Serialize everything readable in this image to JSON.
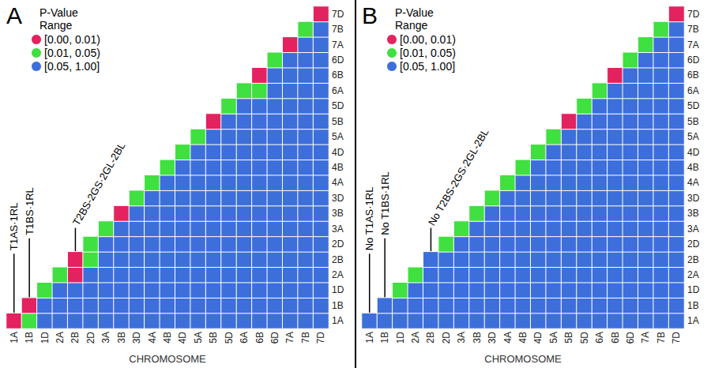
{
  "chart_data": [
    {
      "type": "heatmap",
      "panel_label": "A",
      "x_label": "CHROMOSOME",
      "categories": [
        "1A",
        "1B",
        "1D",
        "2A",
        "2B",
        "2D",
        "3A",
        "3B",
        "3D",
        "4A",
        "4B",
        "4D",
        "5A",
        "5B",
        "5D",
        "6A",
        "6B",
        "6D",
        "7A",
        "7B",
        "7D"
      ],
      "legend_title": "P-Value\nRange",
      "ranges": [
        {
          "min": 0.0,
          "max": 0.01,
          "label": "[0.00, 0.01)",
          "color": "#e3225f"
        },
        {
          "min": 0.01,
          "max": 0.05,
          "label": "[0.01, 0.05)",
          "color": "#3fe03f"
        },
        {
          "min": 0.05,
          "max": 1.0,
          "label": "[0.05, 1.00]",
          "color": "#3d6fdb"
        }
      ],
      "annotations": [
        {
          "text": "T1AS·1RL",
          "chromosome": "1A"
        },
        {
          "text": "T1BS·1RL",
          "chromosome": "1B"
        },
        {
          "text": "T2BS-2GS·2GL-2BL",
          "chromosome": "2B"
        }
      ],
      "p_values": [
        [
          0.005,
          0.03,
          0.5,
          0.5,
          0.5,
          0.5,
          0.5,
          0.5,
          0.5,
          0.5,
          0.5,
          0.5,
          0.5,
          0.5,
          0.5,
          0.5,
          0.5,
          0.5,
          0.5,
          0.5,
          0.5
        ],
        [
          0.005,
          0.5,
          0.5,
          0.5,
          0.5,
          0.5,
          0.5,
          0.5,
          0.5,
          0.5,
          0.5,
          0.5,
          0.5,
          0.5,
          0.5,
          0.5,
          0.5,
          0.5,
          0.5,
          0.5
        ],
        [
          0.03,
          0.5,
          0.5,
          0.5,
          0.5,
          0.5,
          0.5,
          0.5,
          0.5,
          0.5,
          0.5,
          0.5,
          0.5,
          0.5,
          0.5,
          0.5,
          0.5,
          0.5,
          0.5
        ],
        [
          0.03,
          0.005,
          0.5,
          0.5,
          0.5,
          0.5,
          0.5,
          0.5,
          0.5,
          0.5,
          0.5,
          0.5,
          0.5,
          0.5,
          0.5,
          0.5,
          0.5,
          0.5
        ],
        [
          0.005,
          0.03,
          0.5,
          0.5,
          0.5,
          0.5,
          0.5,
          0.5,
          0.5,
          0.5,
          0.5,
          0.5,
          0.5,
          0.5,
          0.5,
          0.5,
          0.5
        ],
        [
          0.03,
          0.5,
          0.5,
          0.5,
          0.5,
          0.5,
          0.5,
          0.5,
          0.5,
          0.5,
          0.5,
          0.5,
          0.5,
          0.5,
          0.5,
          0.5
        ],
        [
          0.03,
          0.5,
          0.5,
          0.5,
          0.5,
          0.5,
          0.5,
          0.5,
          0.5,
          0.5,
          0.5,
          0.5,
          0.5,
          0.5,
          0.5
        ],
        [
          0.005,
          0.5,
          0.5,
          0.5,
          0.5,
          0.5,
          0.5,
          0.5,
          0.5,
          0.5,
          0.5,
          0.5,
          0.5,
          0.5
        ],
        [
          0.03,
          0.5,
          0.5,
          0.5,
          0.5,
          0.5,
          0.5,
          0.5,
          0.5,
          0.5,
          0.5,
          0.5,
          0.5
        ],
        [
          0.03,
          0.5,
          0.5,
          0.5,
          0.5,
          0.5,
          0.5,
          0.5,
          0.5,
          0.5,
          0.5,
          0.5
        ],
        [
          0.03,
          0.5,
          0.5,
          0.5,
          0.5,
          0.5,
          0.5,
          0.5,
          0.5,
          0.5,
          0.5
        ],
        [
          0.03,
          0.5,
          0.5,
          0.5,
          0.5,
          0.5,
          0.5,
          0.5,
          0.5,
          0.5
        ],
        [
          0.03,
          0.5,
          0.5,
          0.5,
          0.5,
          0.5,
          0.5,
          0.5,
          0.5
        ],
        [
          0.005,
          0.5,
          0.5,
          0.5,
          0.5,
          0.5,
          0.5,
          0.5
        ],
        [
          0.03,
          0.5,
          0.5,
          0.5,
          0.5,
          0.5,
          0.5
        ],
        [
          0.03,
          0.03,
          0.5,
          0.5,
          0.5,
          0.5
        ],
        [
          0.005,
          0.5,
          0.5,
          0.5,
          0.5
        ],
        [
          0.03,
          0.5,
          0.5,
          0.5
        ],
        [
          0.005,
          0.5,
          0.5
        ],
        [
          0.03,
          0.5
        ],
        [
          0.005
        ]
      ]
    },
    {
      "type": "heatmap",
      "panel_label": "B",
      "x_label": "CHROMOSOME",
      "categories": [
        "1A",
        "1B",
        "1D",
        "2A",
        "2B",
        "2D",
        "3A",
        "3B",
        "3D",
        "4A",
        "4B",
        "4D",
        "5A",
        "5B",
        "5D",
        "6A",
        "6B",
        "6D",
        "7A",
        "7B",
        "7D"
      ],
      "legend_title": "P-Value\nRange",
      "ranges": [
        {
          "min": 0.0,
          "max": 0.01,
          "label": "[0.00, 0.01)",
          "color": "#e3225f"
        },
        {
          "min": 0.01,
          "max": 0.05,
          "label": "[0.01, 0.05)",
          "color": "#3fe03f"
        },
        {
          "min": 0.05,
          "max": 1.0,
          "label": "[0.05, 1.00]",
          "color": "#3d6fdb"
        }
      ],
      "annotations": [
        {
          "text": "No T1AS·1RL",
          "chromosome": "1A"
        },
        {
          "text": "No T1BS·1RL",
          "chromosome": "1B"
        },
        {
          "text": "No T2BS-2GS·2GL-2BL",
          "chromosome": "2B"
        }
      ],
      "p_values": [
        [
          0.5,
          0.5,
          0.5,
          0.5,
          0.5,
          0.5,
          0.5,
          0.5,
          0.5,
          0.5,
          0.5,
          0.5,
          0.5,
          0.5,
          0.5,
          0.5,
          0.5,
          0.5,
          0.5,
          0.5,
          0.5
        ],
        [
          0.5,
          0.5,
          0.5,
          0.5,
          0.5,
          0.5,
          0.5,
          0.5,
          0.5,
          0.5,
          0.5,
          0.5,
          0.5,
          0.5,
          0.5,
          0.5,
          0.5,
          0.5,
          0.5,
          0.5
        ],
        [
          0.03,
          0.5,
          0.5,
          0.5,
          0.5,
          0.5,
          0.5,
          0.5,
          0.5,
          0.5,
          0.5,
          0.5,
          0.5,
          0.5,
          0.5,
          0.5,
          0.5,
          0.5,
          0.5
        ],
        [
          0.03,
          0.5,
          0.5,
          0.5,
          0.5,
          0.5,
          0.5,
          0.5,
          0.5,
          0.5,
          0.5,
          0.5,
          0.5,
          0.5,
          0.5,
          0.5,
          0.5,
          0.5
        ],
        [
          0.5,
          0.5,
          0.5,
          0.5,
          0.5,
          0.5,
          0.5,
          0.5,
          0.5,
          0.5,
          0.5,
          0.5,
          0.5,
          0.5,
          0.5,
          0.5,
          0.5
        ],
        [
          0.03,
          0.5,
          0.5,
          0.5,
          0.5,
          0.5,
          0.5,
          0.5,
          0.5,
          0.5,
          0.5,
          0.5,
          0.5,
          0.5,
          0.5,
          0.5
        ],
        [
          0.03,
          0.5,
          0.5,
          0.5,
          0.5,
          0.5,
          0.5,
          0.5,
          0.5,
          0.5,
          0.5,
          0.5,
          0.5,
          0.5,
          0.5
        ],
        [
          0.03,
          0.5,
          0.5,
          0.5,
          0.5,
          0.5,
          0.5,
          0.5,
          0.5,
          0.5,
          0.5,
          0.5,
          0.5,
          0.5
        ],
        [
          0.03,
          0.5,
          0.5,
          0.5,
          0.5,
          0.5,
          0.5,
          0.5,
          0.5,
          0.5,
          0.5,
          0.5,
          0.5
        ],
        [
          0.03,
          0.5,
          0.5,
          0.5,
          0.5,
          0.5,
          0.5,
          0.5,
          0.5,
          0.5,
          0.5,
          0.5
        ],
        [
          0.03,
          0.5,
          0.5,
          0.5,
          0.5,
          0.5,
          0.5,
          0.5,
          0.5,
          0.5,
          0.5
        ],
        [
          0.03,
          0.5,
          0.5,
          0.5,
          0.5,
          0.5,
          0.5,
          0.5,
          0.5,
          0.5
        ],
        [
          0.03,
          0.5,
          0.5,
          0.5,
          0.5,
          0.5,
          0.5,
          0.5,
          0.5
        ],
        [
          0.008,
          0.5,
          0.5,
          0.5,
          0.5,
          0.5,
          0.5,
          0.5
        ],
        [
          0.03,
          0.5,
          0.5,
          0.5,
          0.5,
          0.5,
          0.5
        ],
        [
          0.03,
          0.5,
          0.5,
          0.5,
          0.5,
          0.5
        ],
        [
          0.008,
          0.5,
          0.5,
          0.5,
          0.5
        ],
        [
          0.03,
          0.5,
          0.5,
          0.5
        ],
        [
          0.03,
          0.5,
          0.5
        ],
        [
          0.03,
          0.5
        ],
        [
          0.008
        ]
      ]
    }
  ]
}
